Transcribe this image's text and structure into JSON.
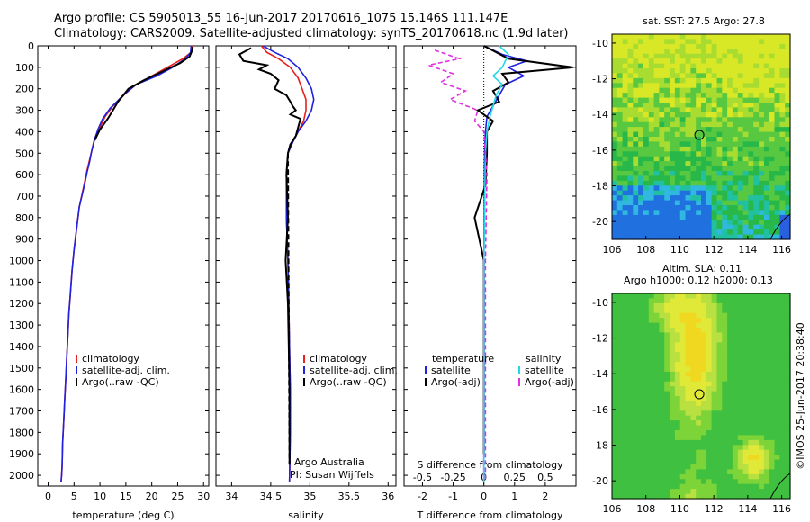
{
  "header": {
    "title_line1": "Argo profile: CS 5905013_55 16-Jun-2017 20170616_1075 15.146S 111.147E",
    "title_line2": "Climatology: CARS2009. Satellite-adjusted climatology: synTS_20170618.nc (1.9d later)"
  },
  "colors": {
    "climatology": "#e8201e",
    "satellite": "#2020e0",
    "argo": "#000000",
    "sat_salinity": "#22d8e8",
    "argo_salinity_diff": "#e030e0"
  },
  "footer": {
    "stamp": "©IMOS 25-Jun-2017 20:38:40"
  },
  "chart_data": [
    {
      "type": "line",
      "name": "temperature",
      "xlabel": "temperature (deg C)",
      "xlim": [
        -2,
        31
      ],
      "xticks": [
        0,
        5,
        10,
        15,
        20,
        25,
        30
      ],
      "ylim": [
        0,
        2050
      ],
      "yticks": [
        0,
        100,
        200,
        300,
        400,
        500,
        600,
        700,
        800,
        900,
        1000,
        1100,
        1200,
        1300,
        1400,
        1500,
        1600,
        1700,
        1800,
        1900,
        2000
      ],
      "legend": [
        "climatology",
        "satellite-adj. clim.",
        "Argo(..raw -QC)"
      ],
      "legend_placement": "lower-center",
      "series": [
        {
          "name": "climatology",
          "color": "#e8201e",
          "x": [
            27.8,
            27.6,
            26,
            23,
            20,
            17,
            15,
            12.5,
            11,
            10,
            9,
            8.5,
            8,
            7.5,
            7,
            6,
            5.5,
            5,
            4.6,
            4.3,
            4,
            3.8,
            3.6,
            3.4,
            3.2,
            3,
            2.8,
            2.7,
            2.6,
            2.5
          ],
          "y": [
            0,
            30,
            60,
            100,
            140,
            180,
            220,
            280,
            330,
            380,
            430,
            480,
            530,
            580,
            640,
            750,
            850,
            950,
            1050,
            1150,
            1250,
            1350,
            1450,
            1550,
            1650,
            1750,
            1850,
            1950,
            2000,
            2030
          ]
        },
        {
          "name": "satellite-adj. clim.",
          "color": "#2020e0",
          "x": [
            27.6,
            27.5,
            26.5,
            24,
            21,
            17,
            14.5,
            12,
            10.5,
            9.6,
            8.9,
            8.4,
            8,
            7.5,
            7,
            6,
            5.5,
            5,
            4.6,
            4.3,
            4,
            3.8,
            3.6,
            3.4,
            3.2,
            3,
            2.8,
            2.7,
            2.6,
            2.5
          ],
          "y": [
            0,
            30,
            60,
            100,
            140,
            180,
            230,
            290,
            340,
            390,
            440,
            490,
            540,
            590,
            650,
            750,
            850,
            950,
            1050,
            1150,
            1250,
            1350,
            1450,
            1550,
            1650,
            1750,
            1850,
            1950,
            2000,
            2030
          ]
        },
        {
          "name": "Argo(..raw -QC)",
          "color": "#000000",
          "x": [
            27.9,
            27.8,
            27.3,
            25.5,
            22,
            18.5,
            15.5,
            13.5,
            12.5,
            11.5,
            10,
            9
          ],
          "y": [
            5,
            20,
            50,
            80,
            120,
            160,
            200,
            260,
            300,
            340,
            390,
            440
          ]
        }
      ]
    },
    {
      "type": "line",
      "name": "salinity",
      "xlabel": "salinity",
      "xlim": [
        33.8,
        36.1
      ],
      "xticks": [
        34,
        34.5,
        35,
        35.5,
        36
      ],
      "ylim": [
        0,
        2050
      ],
      "legend": [
        "climatology",
        "satellite-adj. clim.",
        "Argo(..raw -QC)"
      ],
      "legend_placement": "lower-right",
      "annotations": [
        "Argo Australia",
        "PI: Susan Wijffels"
      ],
      "series": [
        {
          "name": "climatology",
          "color": "#e8201e",
          "x": [
            34.38,
            34.45,
            34.6,
            34.75,
            34.85,
            34.9,
            34.95,
            34.95,
            34.92,
            34.85,
            34.78,
            34.72,
            34.7,
            34.7,
            34.72,
            34.73,
            34.74,
            34.75,
            34.75,
            34.74
          ],
          "y": [
            0,
            30,
            60,
            100,
            150,
            200,
            250,
            300,
            350,
            400,
            450,
            500,
            600,
            800,
            1000,
            1200,
            1400,
            1600,
            1800,
            2030
          ]
        },
        {
          "name": "satellite-adj. clim.",
          "color": "#2020e0",
          "x": [
            34.4,
            34.55,
            34.72,
            34.85,
            34.95,
            35.02,
            35.05,
            35.02,
            34.95,
            34.85,
            34.78,
            34.72,
            34.7,
            34.7,
            34.72,
            34.73,
            34.74,
            34.75,
            34.75,
            34.74
          ],
          "y": [
            0,
            30,
            60,
            100,
            150,
            200,
            250,
            300,
            350,
            400,
            450,
            500,
            600,
            800,
            1000,
            1200,
            1400,
            1600,
            1800,
            2030
          ]
        },
        {
          "name": "Argo(..raw -QC)",
          "color": "#000000",
          "x": [
            34.25,
            34.1,
            34.15,
            34.45,
            34.35,
            34.5,
            34.6,
            34.55,
            34.7,
            34.75,
            34.78,
            34.82,
            34.75,
            34.88,
            34.85,
            34.82,
            34.75,
            34.72,
            34.7,
            34.72,
            34.69,
            34.72,
            34.73,
            34.74,
            34.74
          ],
          "y": [
            10,
            40,
            70,
            90,
            110,
            130,
            160,
            200,
            230,
            260,
            280,
            300,
            320,
            340,
            380,
            420,
            460,
            500,
            600,
            800,
            1000,
            1200,
            1400,
            1600,
            1950
          ]
        }
      ]
    },
    {
      "type": "line",
      "name": "difference",
      "xlabel": "T difference from climatology",
      "x2label": "S difference from climatology",
      "xlim": [
        -2.6,
        3.0
      ],
      "xticks": [
        -2,
        -1,
        0,
        1,
        2
      ],
      "x2ticks_labels": [
        "-0.5",
        "-0.25",
        "0",
        "0.25",
        "0.5"
      ],
      "ylim": [
        0,
        2050
      ],
      "legend": [
        "temperature",
        "satellite",
        "Argo(-adj)",
        "salinity",
        "satellite",
        "Argo(-adj)"
      ],
      "legend_placement": "middle",
      "series": [
        {
          "name": "T satellite",
          "color": "#2020e0",
          "x": [
            0,
            0.6,
            1.4,
            0.8,
            1.3,
            0.7,
            0.5,
            0.3,
            0.1,
            0.05,
            0.02,
            0,
            0
          ],
          "y": [
            0,
            40,
            70,
            100,
            140,
            180,
            230,
            280,
            330,
            400,
            500,
            1000,
            2030
          ]
        },
        {
          "name": "T Argo(-adj)",
          "color": "#000000",
          "x": [
            0,
            0.8,
            2.9,
            0.6,
            0.8,
            0.3,
            0.5,
            -0.2,
            0.3,
            0.1,
            0.1,
            0.05,
            -0.3,
            0,
            0
          ],
          "y": [
            0,
            60,
            100,
            130,
            170,
            210,
            260,
            300,
            350,
            400,
            500,
            650,
            800,
            1000,
            1900
          ]
        },
        {
          "name": "S satellite",
          "color": "#22d8e8",
          "x": [
            0.5,
            0.8,
            0.6,
            0.3,
            0.6,
            0.4,
            0.3,
            0.2,
            0.1,
            0.05,
            0,
            0
          ],
          "y": [
            0,
            40,
            100,
            140,
            180,
            230,
            280,
            330,
            400,
            500,
            1000,
            2030
          ]
        },
        {
          "name": "S Argo(-adj)",
          "color": "#e030e0",
          "x": [
            -1.6,
            -0.8,
            -1.8,
            -1.0,
            -1.4,
            -0.6,
            -1.1,
            -0.2,
            -0.3,
            0,
            0.1,
            0.05,
            0.05,
            0.05
          ],
          "y": [
            20,
            60,
            90,
            130,
            170,
            210,
            250,
            300,
            350,
            400,
            600,
            1000,
            1500,
            2030
          ]
        }
      ]
    },
    {
      "type": "heatmap",
      "name": "sst-map",
      "title": "sat. SST: 27.5 Argo: 27.8",
      "xlim": [
        106,
        116.5
      ],
      "ylim": [
        -21,
        -9.5
      ],
      "xticks": [
        106,
        108,
        110,
        112,
        114,
        116
      ],
      "yticks": [
        -10,
        -12,
        -14,
        -16,
        -18,
        -20
      ],
      "argo_position": [
        111.147,
        -15.146
      ]
    },
    {
      "type": "heatmap",
      "name": "sla-map",
      "title": "Altim. SLA: 0.11",
      "subtitle": "Argo h1000: 0.12 h2000: 0.13",
      "xlim": [
        106,
        116.5
      ],
      "ylim": [
        -21,
        -9.5
      ],
      "xticks": [
        106,
        108,
        110,
        112,
        114,
        116
      ],
      "yticks": [
        -10,
        -12,
        -14,
        -16,
        -18,
        -20
      ],
      "argo_position": [
        111.147,
        -15.146
      ]
    }
  ]
}
